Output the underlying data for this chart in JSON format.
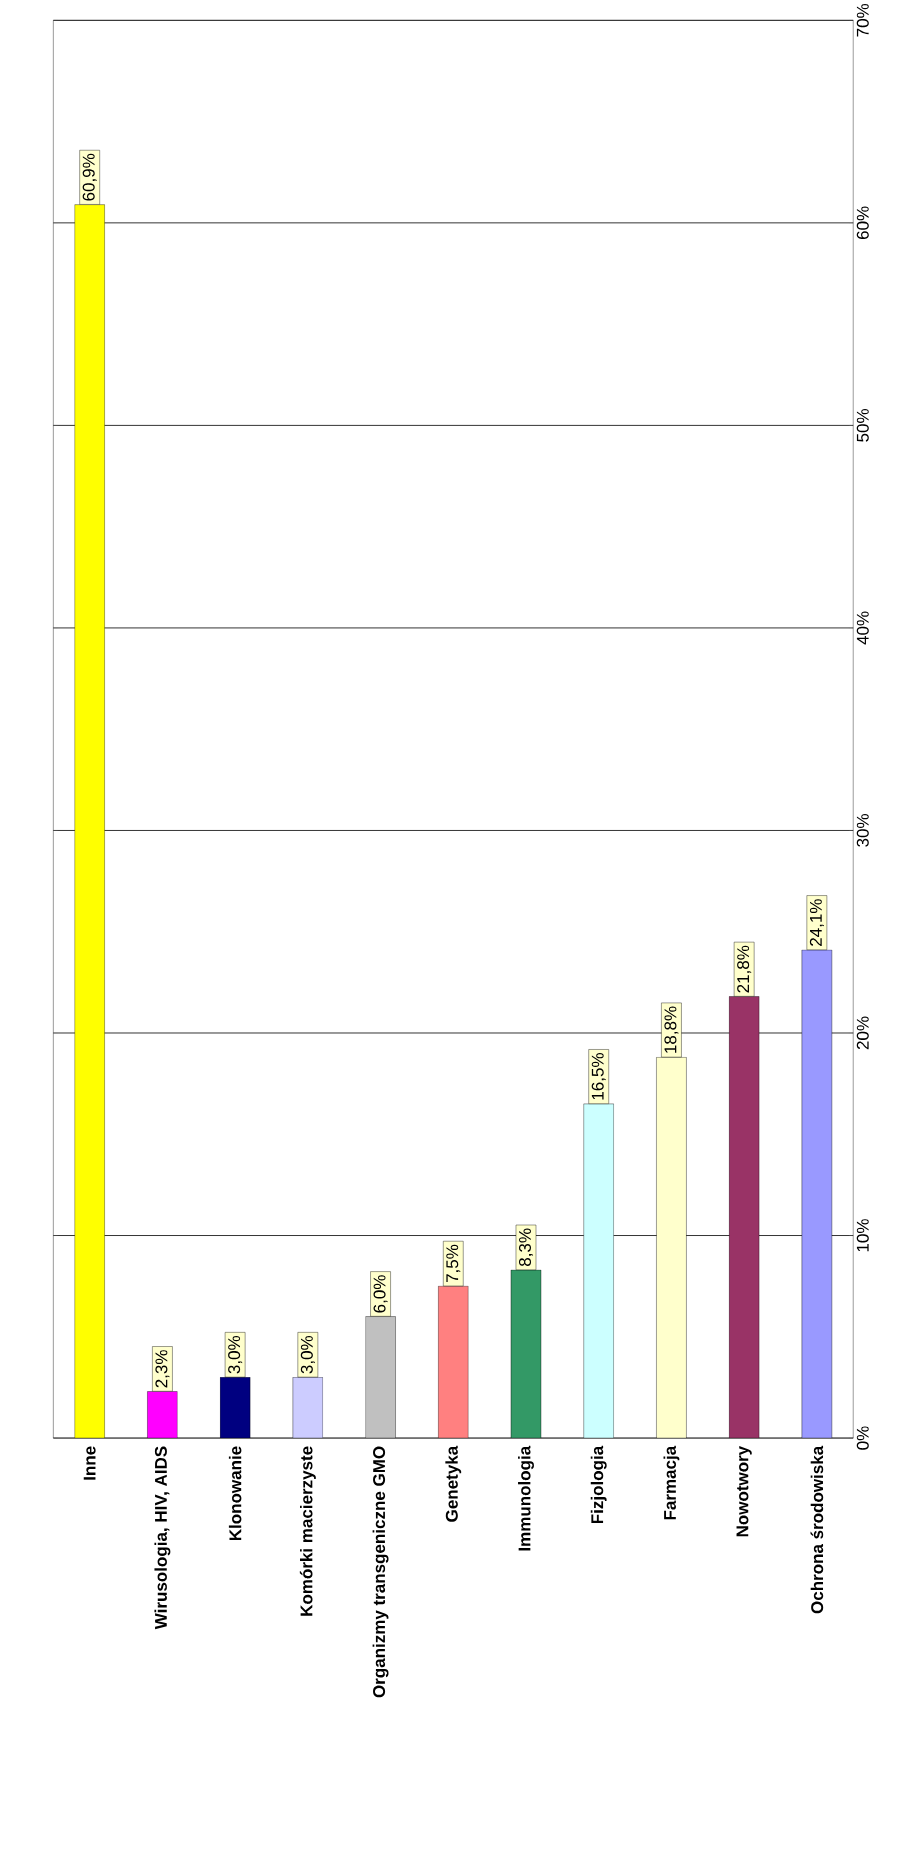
{
  "chart_data": {
    "type": "bar",
    "categories": [
      "Inne",
      "Wirusologia, HIV, AIDS",
      "Klonowanie",
      "Komórki macierzyste",
      "Organizmy transgeniczne GMO",
      "Genetyka",
      "Immunologia",
      "Fizjologia",
      "Farmacja",
      "Nowotwory",
      "Ochrona środowiska"
    ],
    "values": [
      60.9,
      2.3,
      3.0,
      3.0,
      6.0,
      7.5,
      8.3,
      16.5,
      18.8,
      21.8,
      24.1
    ],
    "value_labels": [
      "60,9%",
      "2,3%",
      "3,0%",
      "3,0%",
      "6,0%",
      "7,5%",
      "8,3%",
      "16,5%",
      "18,8%",
      "21,8%",
      "24,1%"
    ],
    "colors": [
      "#ffff00",
      "#ff00ff",
      "#000080",
      "#ccccff",
      "#c0c0c0",
      "#ff8080",
      "#339966",
      "#ccffff",
      "#ffffcc",
      "#993366",
      "#9999ff"
    ],
    "ylim": [
      0,
      70
    ],
    "yticks": [
      {
        "value": 0,
        "label": "0%"
      },
      {
        "value": 10,
        "label": "10%"
      },
      {
        "value": 20,
        "label": "20%"
      },
      {
        "value": 30,
        "label": "30%"
      },
      {
        "value": 40,
        "label": "40%"
      },
      {
        "value": 50,
        "label": "50%"
      },
      {
        "value": 60,
        "label": "60%"
      },
      {
        "value": 70,
        "label": "70%"
      }
    ],
    "grid": "y"
  }
}
